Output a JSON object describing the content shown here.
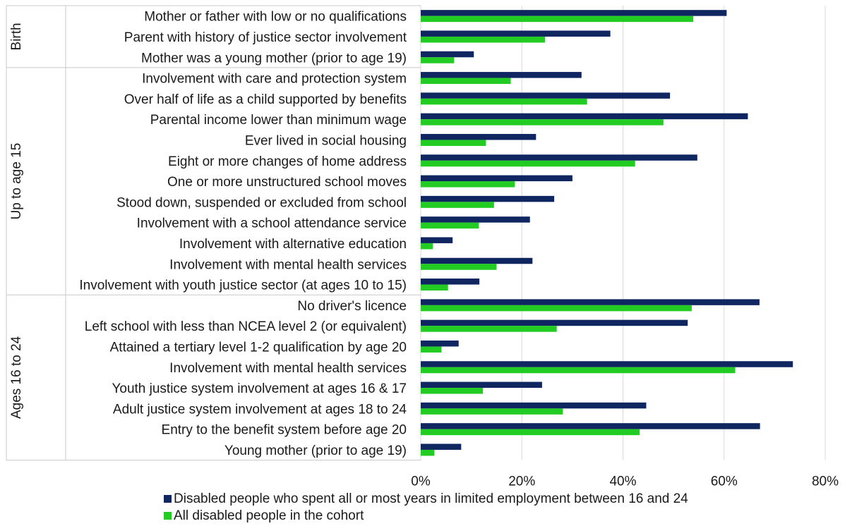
{
  "colors": {
    "series_dark": "#0f2660",
    "series_green": "#22cc22",
    "grid": "#d9d9d9",
    "divider": "#c8c8c8"
  },
  "chart_data": {
    "type": "bar",
    "orientation": "horizontal",
    "title": "",
    "xlabel": "",
    "ylabel": "",
    "xlim": [
      0,
      80
    ],
    "x_ticks": [
      "0%",
      "20%",
      "40%",
      "60%",
      "80%"
    ],
    "x_tick_values": [
      0,
      20,
      40,
      60,
      80
    ],
    "grid": "vertical",
    "legend_position": "bottom",
    "groups": [
      {
        "name": "Birth",
        "count": 3
      },
      {
        "name": "Up to age 15",
        "count": 11
      },
      {
        "name": "Ages 16 to 24",
        "count": 8
      }
    ],
    "categories": [
      "Mother or father with low or no qualifications",
      "Parent with history of justice sector involvement",
      "Mother was a young mother (prior to age 19)",
      "Involvement with care and protection system",
      "Over half of life as a child supported by benefits",
      "Parental income lower than minimum wage",
      "Ever lived in social housing",
      "Eight or more changes of home address",
      "One or more unstructured school moves",
      "Stood down, suspended or excluded from school",
      "Involvement with a school attendance service",
      "Involvement with alternative education",
      "Involvement with mental health services",
      "Involvement with youth justice sector (at ages 10 to 15)",
      "No driver's licence",
      "Left school with less than NCEA level 2 (or equivalent)",
      "Attained a tertiary level 1-2 qualification by age 20",
      "Involvement with mental health services",
      "Youth justice system involvement at ages 16 & 17",
      "Adult justice system involvement at ages 18 to 24",
      "Entry to the benefit system before age 20",
      "Young mother (prior to age 19)"
    ],
    "series": [
      {
        "name": "Disabled people who spent all or most years in limited employment between 16 and 24",
        "values": [
          60.5,
          37.5,
          10.5,
          31.8,
          49.3,
          64.7,
          22.8,
          54.7,
          30.0,
          26.4,
          21.6,
          6.3,
          22.1,
          11.6,
          67.0,
          52.8,
          7.5,
          73.6,
          24.0,
          44.6,
          67.1,
          8.0
        ]
      },
      {
        "name": "All disabled people in the cohort",
        "values": [
          53.9,
          24.6,
          6.6,
          17.8,
          32.9,
          48.0,
          12.9,
          42.4,
          18.6,
          14.5,
          11.5,
          2.4,
          15.0,
          5.4,
          53.6,
          26.9,
          4.1,
          62.2,
          12.3,
          28.1,
          43.3,
          2.7
        ]
      }
    ]
  }
}
